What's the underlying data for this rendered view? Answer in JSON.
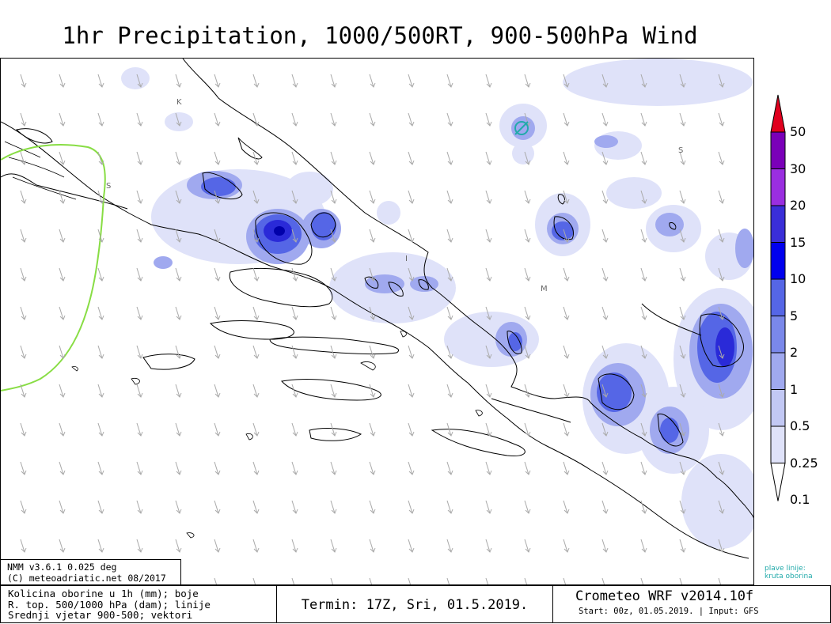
{
  "title": "1hr Precipitation, 1000/500RT, 900-500hPa Wind",
  "legend": {
    "levels": [
      "50",
      "30",
      "20",
      "15",
      "10",
      "5",
      "2",
      "1",
      "0.5",
      "0.25",
      "0.1"
    ],
    "colors": [
      "#e0001e",
      "#7a00b8",
      "#9a2ee0",
      "#3a2ed8",
      "#0000ee",
      "#5566e6",
      "#7a88ea",
      "#a0a9ef",
      "#c2c8f4",
      "#dfe2f9",
      "#f2f3fd"
    ],
    "note_line1": "plave linije:",
    "note_line2": "kruta oborina"
  },
  "map": {
    "region_labels": [
      "K",
      "S",
      "S",
      "I",
      "M"
    ],
    "vector_color": "#aaaaaa",
    "contour_color": "#88dd44",
    "precip_colors": {
      "light": "#dfe2f9",
      "mid": "#a0a9ef",
      "strong": "#5566e6",
      "heavy": "#2a2ad8",
      "peak": "#0000aa"
    }
  },
  "info": {
    "line1": "NMM v3.6.1 0.025 deg",
    "line2": "(C) meteoadriatic.net 08/2017"
  },
  "footer": {
    "desc_line1": "Kolicina oborine u 1h (mm); boje",
    "desc_line2": "R. top. 500/1000 hPa (dam); linije",
    "desc_line3": "Srednji vjetar 900-500; vektori",
    "termin": "Termin: 17Z, Sri, 01.5.2019.",
    "model": "Crometeo WRF v2014.10f",
    "start": "Start: 00z, 01.05.2019. | Input: GFS"
  }
}
